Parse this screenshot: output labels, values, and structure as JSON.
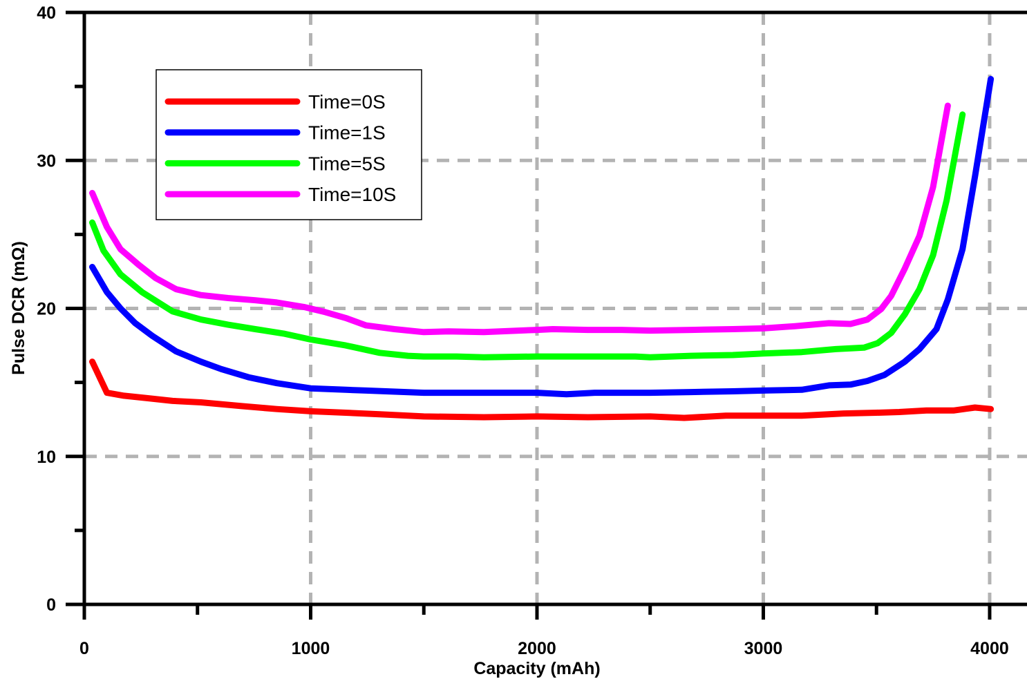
{
  "chart_data": {
    "type": "line",
    "xlabel": "Capacity (mAh)",
    "ylabel": "Pulse DCR (mΩ)",
    "xlim": [
      0,
      4165
    ],
    "ylim": [
      0,
      40
    ],
    "xticks": [
      "0",
      "1000",
      "2000",
      "3000",
      "4000"
    ],
    "yticks": [
      "0",
      "10",
      "20",
      "30",
      "40"
    ],
    "grid": true,
    "grid_style": "dashed",
    "legend_position": "top-left",
    "series": [
      {
        "name": "Time=0S",
        "color": "#ff0000",
        "x": [
          35,
          100,
          175,
          270,
          390,
          515,
          695,
          850,
          1000,
          1155,
          1305,
          1500,
          1765,
          2000,
          2225,
          2500,
          2650,
          2835,
          3000,
          3170,
          3355,
          3500,
          3600,
          3720,
          3840,
          3935,
          4005
        ],
        "y": [
          16.4,
          14.3,
          14.1,
          13.95,
          13.75,
          13.65,
          13.4,
          13.2,
          13.05,
          12.95,
          12.85,
          12.7,
          12.65,
          12.7,
          12.65,
          12.7,
          12.6,
          12.75,
          12.75,
          12.75,
          12.9,
          12.95,
          13.0,
          13.1,
          13.1,
          13.3,
          13.2
        ]
      },
      {
        "name": "Time=1S",
        "color": "#0000ff",
        "x": [
          35,
          100,
          160,
          225,
          300,
          405,
          515,
          605,
          725,
          850,
          1000,
          1155,
          1245,
          1500,
          1765,
          2000,
          2130,
          2255,
          2500,
          2680,
          2865,
          3000,
          3170,
          3290,
          3385,
          3460,
          3535,
          3625,
          3690,
          3765,
          3815,
          3880,
          3935,
          4005
        ],
        "y": [
          22.8,
          21.1,
          20.0,
          19.0,
          18.15,
          17.1,
          16.4,
          15.9,
          15.35,
          14.95,
          14.6,
          14.5,
          14.45,
          14.3,
          14.3,
          14.3,
          14.2,
          14.3,
          14.3,
          14.35,
          14.4,
          14.45,
          14.5,
          14.8,
          14.85,
          15.1,
          15.5,
          16.4,
          17.25,
          18.6,
          20.6,
          24.0,
          28.9,
          35.5
        ]
      },
      {
        "name": "Time=5S",
        "color": "#00ff00",
        "x": [
          35,
          85,
          160,
          255,
          390,
          515,
          635,
          755,
          880,
          1000,
          1155,
          1305,
          1430,
          1500,
          1645,
          1765,
          2000,
          2225,
          2435,
          2500,
          2680,
          2865,
          3000,
          3170,
          3320,
          3445,
          3505,
          3565,
          3625,
          3690,
          3750,
          3810,
          3880
        ],
        "y": [
          25.8,
          23.9,
          22.3,
          21.1,
          19.8,
          19.25,
          18.9,
          18.6,
          18.3,
          17.9,
          17.5,
          17.0,
          16.8,
          16.75,
          16.75,
          16.7,
          16.75,
          16.75,
          16.75,
          16.7,
          16.8,
          16.85,
          16.95,
          17.05,
          17.25,
          17.35,
          17.65,
          18.35,
          19.6,
          21.3,
          23.6,
          27.3,
          33.1
        ]
      },
      {
        "name": "Time=10S",
        "color": "#ff00ff",
        "x": [
          35,
          100,
          160,
          240,
          315,
          405,
          515,
          635,
          755,
          850,
          970,
          1065,
          1155,
          1245,
          1370,
          1500,
          1610,
          1765,
          1920,
          2000,
          2070,
          2225,
          2375,
          2500,
          2680,
          2865,
          3000,
          3140,
          3290,
          3385,
          3460,
          3520,
          3565,
          3625,
          3690,
          3750,
          3815
        ],
        "y": [
          27.8,
          25.5,
          24.0,
          22.95,
          22.05,
          21.3,
          20.9,
          20.7,
          20.55,
          20.4,
          20.1,
          19.75,
          19.35,
          18.85,
          18.6,
          18.4,
          18.45,
          18.4,
          18.5,
          18.55,
          18.6,
          18.55,
          18.55,
          18.5,
          18.55,
          18.6,
          18.65,
          18.8,
          19.0,
          18.95,
          19.25,
          19.95,
          20.85,
          22.7,
          24.9,
          28.2,
          33.7
        ]
      }
    ]
  }
}
